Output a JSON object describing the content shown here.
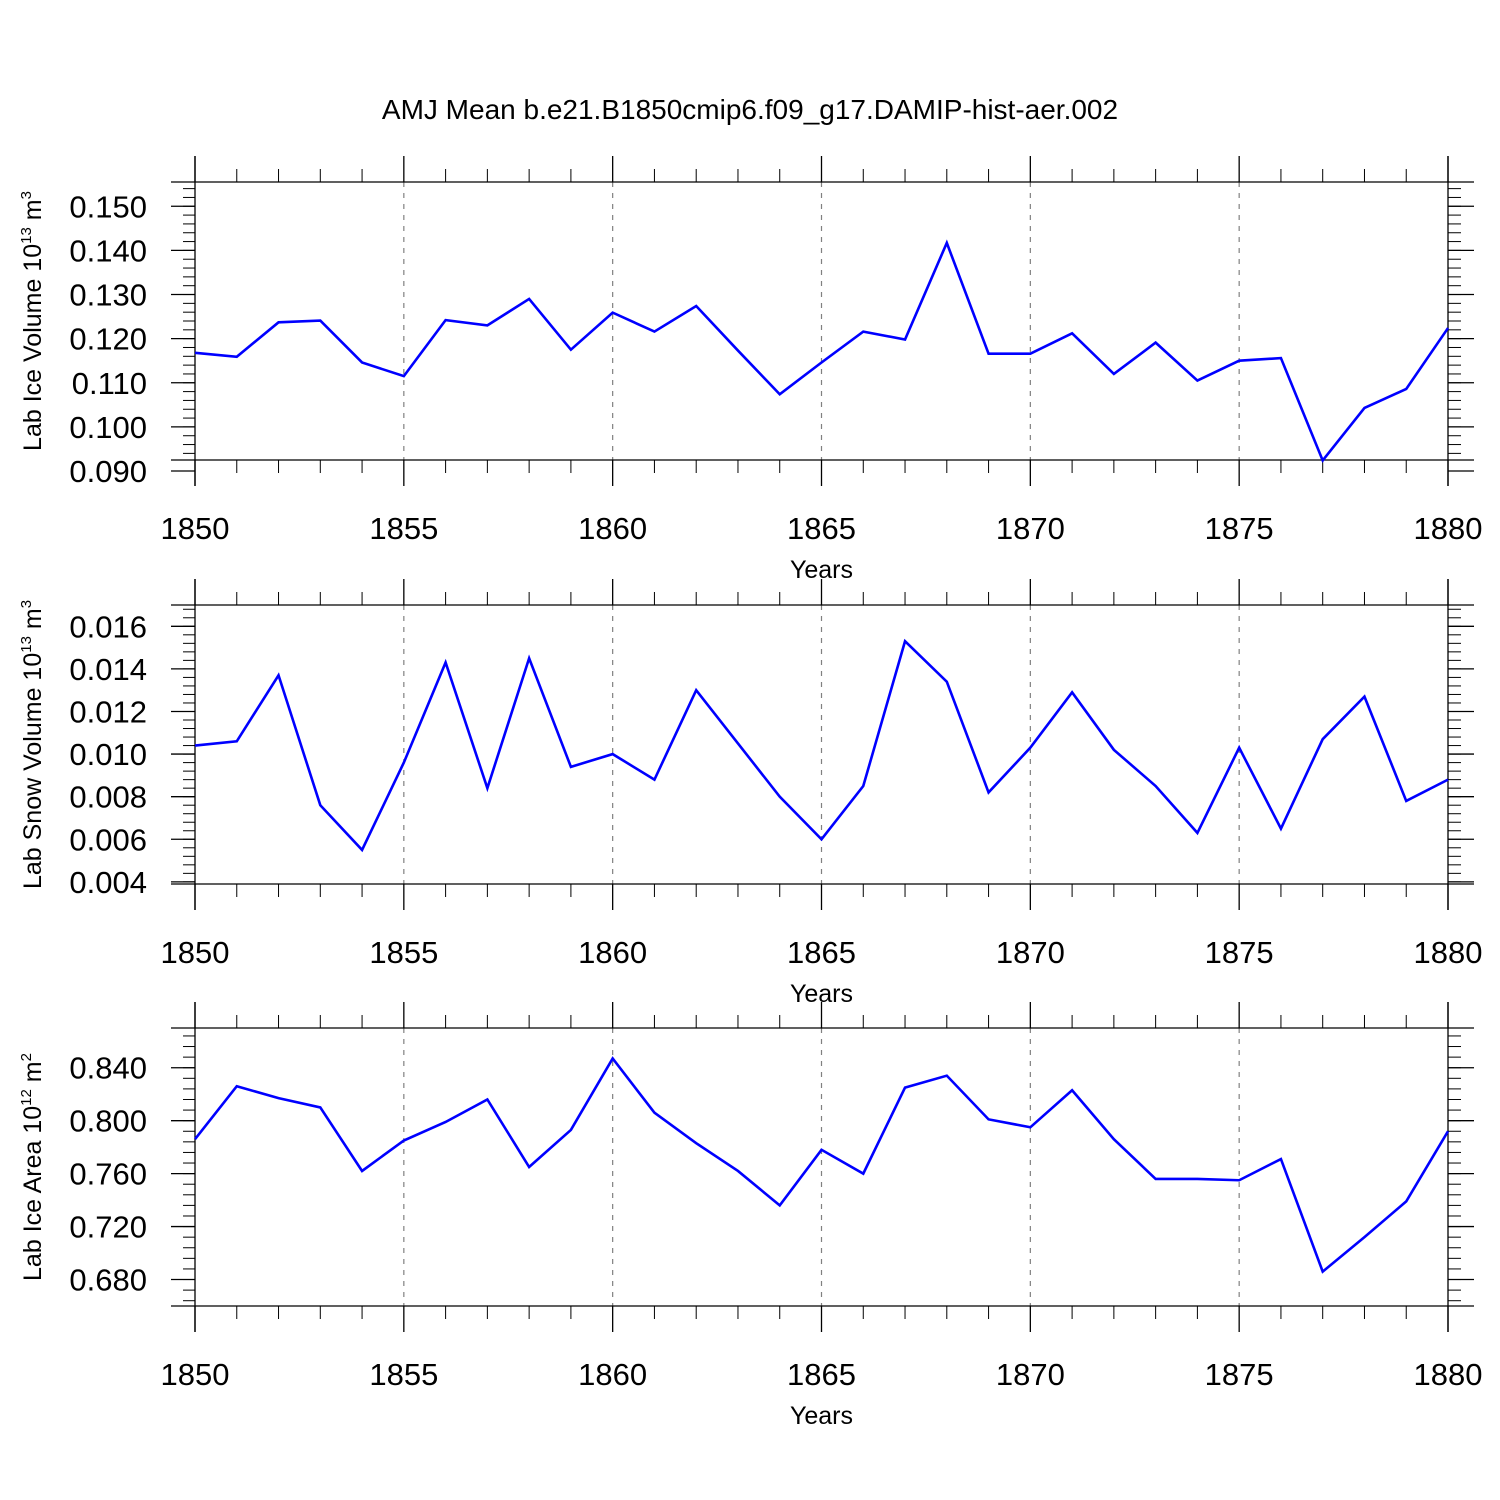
{
  "figure": {
    "title": "AMJ Mean b.e21.B1850cmip6.f09_g17.DAMIP-hist-aer.002"
  },
  "colors": {
    "line": "#0000ff",
    "axes": "#000000",
    "grid": "#808080"
  },
  "chart_data": [
    {
      "type": "line",
      "title": "",
      "xlabel": "Years",
      "ylabel": {
        "text": "Lab Ice Volume 10",
        "sup1": "13",
        "mid": " m",
        "sup2": "3"
      },
      "xlim": [
        1850,
        1880
      ],
      "ylim": [
        0.0925,
        0.1555
      ],
      "x_ticks": [
        "1850",
        "1855",
        "1860",
        "1865",
        "1870",
        "1875",
        "1880"
      ],
      "y_ticks": [
        "0.090",
        "0.100",
        "0.110",
        "0.120",
        "0.130",
        "0.140",
        "0.150"
      ],
      "grid": "vertical dashed at x ticks",
      "legend": "none",
      "series": [
        {
          "x": [
            1850,
            1851,
            1852,
            1853,
            1854,
            1855,
            1856,
            1857,
            1858,
            1859,
            1860,
            1861,
            1862,
            1863,
            1864,
            1865,
            1866,
            1867,
            1868,
            1869,
            1870,
            1871,
            1872,
            1873,
            1874,
            1875,
            1876,
            1877,
            1878,
            1879,
            1880
          ],
          "values": [
            0.1168,
            0.1159,
            0.1237,
            0.1241,
            0.1146,
            0.1115,
            0.1242,
            0.123,
            0.129,
            0.1175,
            0.1259,
            0.1216,
            0.1274,
            0.1173,
            0.1074,
            0.1146,
            0.1216,
            0.1198,
            0.1417,
            0.1166,
            0.1166,
            0.1212,
            0.112,
            0.1191,
            0.1105,
            0.115,
            0.1156,
            0.0924,
            0.1043,
            0.1086,
            0.1224
          ]
        }
      ]
    },
    {
      "type": "line",
      "title": "",
      "xlabel": "Years",
      "ylabel": {
        "text": "Lab Snow Volume 10",
        "sup1": "13",
        "mid": " m",
        "sup2": "3"
      },
      "xlim": [
        1850,
        1880
      ],
      "ylim": [
        0.0039,
        0.017
      ],
      "x_ticks": [
        "1850",
        "1855",
        "1860",
        "1865",
        "1870",
        "1875",
        "1880"
      ],
      "y_ticks": [
        "0.004",
        "0.006",
        "0.008",
        "0.010",
        "0.012",
        "0.014",
        "0.016"
      ],
      "grid": "vertical dashed at x ticks",
      "legend": "none",
      "series": [
        {
          "x": [
            1850,
            1851,
            1852,
            1853,
            1854,
            1855,
            1856,
            1857,
            1858,
            1859,
            1860,
            1861,
            1862,
            1863,
            1864,
            1865,
            1866,
            1867,
            1868,
            1869,
            1870,
            1871,
            1872,
            1873,
            1874,
            1875,
            1876,
            1877,
            1878,
            1879,
            1880
          ],
          "values": [
            0.0104,
            0.0106,
            0.0137,
            0.0076,
            0.0055,
            0.0096,
            0.0143,
            0.0084,
            0.0145,
            0.0094,
            0.01,
            0.0088,
            0.013,
            0.0105,
            0.008,
            0.006,
            0.0085,
            0.0153,
            0.0134,
            0.0082,
            0.0103,
            0.0129,
            0.0102,
            0.0085,
            0.0063,
            0.0103,
            0.0065,
            0.0107,
            0.0127,
            0.0078,
            0.0088
          ]
        }
      ]
    },
    {
      "type": "line",
      "title": "",
      "xlabel": "Years",
      "ylabel": {
        "text": "Lab Ice Area 10",
        "sup1": "12",
        "mid": " m",
        "sup2": "2"
      },
      "xlim": [
        1850,
        1880
      ],
      "ylim": [
        0.66,
        0.87
      ],
      "x_ticks": [
        "1850",
        "1855",
        "1860",
        "1865",
        "1870",
        "1875",
        "1880"
      ],
      "y_ticks": [
        "0.680",
        "0.720",
        "0.760",
        "0.800",
        "0.840"
      ],
      "grid": "vertical dashed at x ticks",
      "legend": "none",
      "series": [
        {
          "x": [
            1850,
            1851,
            1852,
            1853,
            1854,
            1855,
            1856,
            1857,
            1858,
            1859,
            1860,
            1861,
            1862,
            1863,
            1864,
            1865,
            1866,
            1867,
            1868,
            1869,
            1870,
            1871,
            1872,
            1873,
            1874,
            1875,
            1876,
            1877,
            1878,
            1879,
            1880
          ],
          "values": [
            0.786,
            0.826,
            0.817,
            0.81,
            0.762,
            0.785,
            0.799,
            0.816,
            0.765,
            0.793,
            0.847,
            0.806,
            0.783,
            0.762,
            0.736,
            0.778,
            0.76,
            0.825,
            0.834,
            0.801,
            0.795,
            0.823,
            0.786,
            0.756,
            0.756,
            0.755,
            0.771,
            0.686,
            0.712,
            0.739,
            0.792
          ]
        }
      ]
    }
  ]
}
